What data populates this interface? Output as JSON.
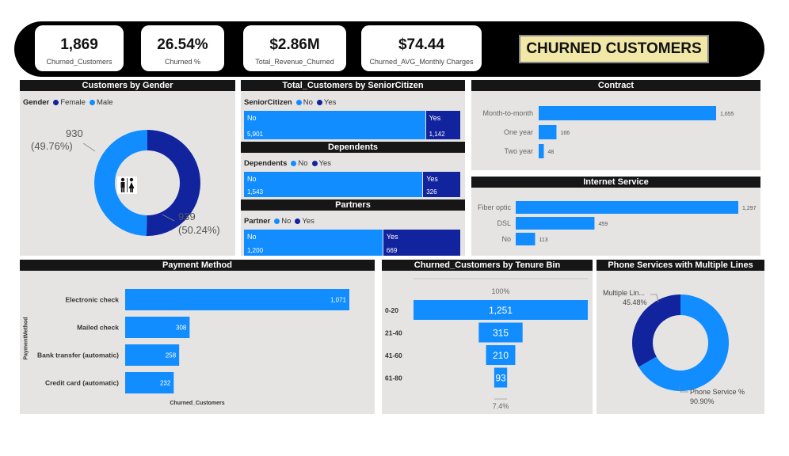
{
  "kpis": [
    {
      "value": "1,869",
      "label": "Churned_Customers"
    },
    {
      "value": "26.54%",
      "label": "Churned %"
    },
    {
      "value": "$2.86M",
      "label": "Total_Revenue_Churned"
    },
    {
      "value": "$74.44",
      "label": "Churned_AVG_Monthly Charges"
    }
  ],
  "banner_title": "CHURNED CUSTOMERS",
  "colors": {
    "light": "#118dff",
    "dark": "#12239e",
    "panel": "#e6e4e3",
    "title_bg": "#161616"
  },
  "chart_data": [
    {
      "type": "pie",
      "title": "Customers by Gender",
      "legend_title": "Gender",
      "categories": [
        "Female",
        "Male"
      ],
      "values": [
        939,
        930
      ],
      "labels": [
        {
          "value": "939",
          "pct": "(50.24%)"
        },
        {
          "value": "930",
          "pct": "(49.76%)"
        }
      ],
      "center_icon": "restroom-icon"
    },
    {
      "type": "bar",
      "title": "Total_Customers by SeniorCitizen",
      "stacked_percent": true,
      "legend_title": "SeniorCitizen",
      "categories": [
        "No",
        "Yes"
      ],
      "values": [
        5901,
        1142
      ],
      "value_labels": [
        "5,901",
        "1,142"
      ]
    },
    {
      "type": "bar",
      "title": "Dependents",
      "stacked_percent": true,
      "legend_title": "Dependents",
      "categories": [
        "No",
        "Yes"
      ],
      "values": [
        1543,
        326
      ],
      "value_labels": [
        "1,543",
        "326"
      ]
    },
    {
      "type": "bar",
      "title": "Partners",
      "stacked_percent": true,
      "legend_title": "Partner",
      "categories": [
        "No",
        "Yes"
      ],
      "values": [
        1200,
        669
      ],
      "value_labels": [
        "1,200",
        "669"
      ]
    },
    {
      "type": "bar",
      "title": "Contract",
      "orientation": "horizontal",
      "categories": [
        "Month-to-month",
        "One year",
        "Two year"
      ],
      "values": [
        1655,
        166,
        48
      ],
      "value_labels": [
        "1,655",
        "166",
        "48"
      ]
    },
    {
      "type": "bar",
      "title": "Internet Service",
      "orientation": "horizontal",
      "categories": [
        "Fiber optic",
        "DSL",
        "No"
      ],
      "values": [
        1297,
        459,
        113
      ],
      "value_labels": [
        "1,297",
        "459",
        "113"
      ]
    },
    {
      "type": "bar",
      "title": "Payment Method",
      "orientation": "horizontal",
      "categories": [
        "Electronic check",
        "Mailed check",
        "Bank transfer (automatic)",
        "Credit card (automatic)"
      ],
      "values": [
        1071,
        308,
        258,
        232
      ],
      "value_labels": [
        "1,071",
        "308",
        "258",
        "232"
      ],
      "xlabel": "Churned_Customers",
      "ylabel": "PaymentMethod"
    },
    {
      "type": "bar",
      "subtype": "funnel",
      "title": "Churned_Customers by Tenure Bin",
      "categories": [
        "0-20",
        "21-40",
        "41-60",
        "61-80"
      ],
      "values": [
        1251,
        315,
        210,
        93
      ],
      "value_labels": [
        "1,251",
        "315",
        "210",
        "93"
      ],
      "top_label": "100%",
      "bottom_label": "7.4%"
    },
    {
      "type": "pie",
      "title": "Phone Services with Multiple Lines",
      "categories": [
        "Multiple Lin...",
        "Phone Service %"
      ],
      "values": [
        45.48,
        90.9
      ],
      "value_labels": [
        "45.48%",
        "90.90%"
      ]
    }
  ]
}
